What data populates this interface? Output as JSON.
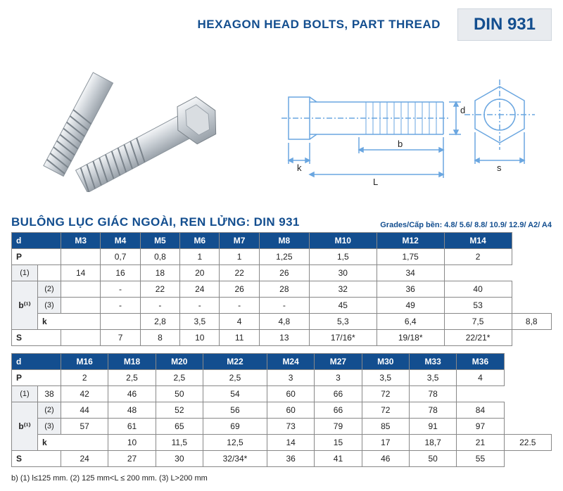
{
  "header": {
    "title_en": "HEXAGON HEAD BOLTS, PART THREAD",
    "din": "DIN 931"
  },
  "diagram_labels": {
    "k": "k",
    "L": "L",
    "b": "b",
    "d": "d",
    "s": "s"
  },
  "subtitle": {
    "vn": "BULÔNG LỤC GIÁC NGOÀI, REN LỬNG: DIN 931",
    "grades": "Grades/Cấp bền: 4.8/ 5.6/ 8.8/ 10.9/ 12.9/ A2/ A4"
  },
  "colors": {
    "brand": "#134e8f",
    "badge_bg": "#e8ebef",
    "sub_bg": "#eef0f3",
    "grid": "#888888",
    "diagram_line": "#6aa6e0"
  },
  "table1": {
    "head": [
      "d",
      "M3",
      "M4",
      "M5",
      "M6",
      "M7",
      "M8",
      "M10",
      "M12",
      "M14"
    ],
    "rows": [
      {
        "label": "P",
        "sub": "",
        "cells": [
          "",
          "0,7",
          "0,8",
          "1",
          "1",
          "1,25",
          "1,5",
          "1,75",
          "2"
        ]
      },
      {
        "label": "",
        "sub": "(1)",
        "cells": [
          "",
          "14",
          "16",
          "18",
          "20",
          "22",
          "26",
          "30",
          "34"
        ]
      },
      {
        "label": "b⁽¹⁾",
        "sub": "(2)",
        "cells": [
          "",
          "-",
          "22",
          "24",
          "26",
          "28",
          "32",
          "36",
          "40"
        ]
      },
      {
        "label": "",
        "sub": "(3)",
        "cells": [
          "",
          "-",
          "-",
          "-",
          "-",
          "-",
          "45",
          "49",
          "53"
        ]
      },
      {
        "label": "k",
        "sub": "",
        "cells": [
          "",
          "2,8",
          "3,5",
          "4",
          "4,8",
          "5,3",
          "6,4",
          "7,5",
          "8,8"
        ]
      },
      {
        "label": "S",
        "sub": "",
        "cells": [
          "",
          "7",
          "8",
          "10",
          "11",
          "13",
          "17/16*",
          "19/18*",
          "22/21*"
        ]
      }
    ]
  },
  "table2": {
    "head": [
      "d",
      "M16",
      "M18",
      "M20",
      "M22",
      "M24",
      "M27",
      "M30",
      "M33",
      "M36"
    ],
    "rows": [
      {
        "label": "P",
        "sub": "",
        "cells": [
          "2",
          "2,5",
          "2,5",
          "2,5",
          "3",
          "3",
          "3,5",
          "3,5",
          "4"
        ]
      },
      {
        "label": "",
        "sub": "(1)",
        "cells": [
          "38",
          "42",
          "46",
          "50",
          "54",
          "60",
          "66",
          "72",
          "78"
        ]
      },
      {
        "label": "b⁽¹⁾",
        "sub": "(2)",
        "cells": [
          "44",
          "48",
          "52",
          "56",
          "60",
          "66",
          "72",
          "78",
          "84"
        ]
      },
      {
        "label": "",
        "sub": "(3)",
        "cells": [
          "57",
          "61",
          "65",
          "69",
          "73",
          "79",
          "85",
          "91",
          "97"
        ]
      },
      {
        "label": "k",
        "sub": "",
        "cells": [
          "10",
          "11,5",
          "12,5",
          "14",
          "15",
          "17",
          "18,7",
          "21",
          "22.5"
        ]
      },
      {
        "label": "S",
        "sub": "",
        "cells": [
          "24",
          "27",
          "30",
          "32/34*",
          "36",
          "41",
          "46",
          "50",
          "55"
        ]
      }
    ]
  },
  "footnote": "b) (1) l≤125 mm. (2) 125 mm<L ≤ 200 mm. (3) L>200 mm"
}
